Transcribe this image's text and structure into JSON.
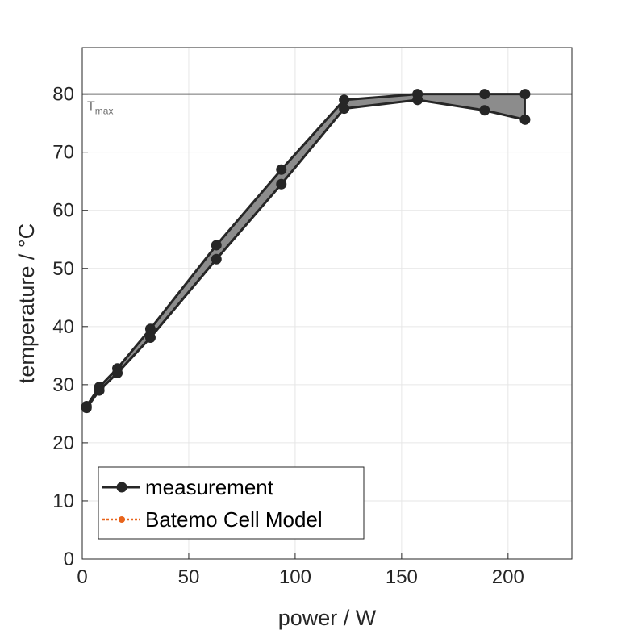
{
  "chart_data": {
    "type": "line",
    "xlabel": "power / W",
    "ylabel": "temperature / °C",
    "xlim": [
      0,
      230
    ],
    "ylim": [
      0,
      88
    ],
    "xticks": [
      0,
      50,
      100,
      150,
      200
    ],
    "yticks": [
      0,
      10,
      20,
      30,
      40,
      50,
      60,
      70,
      80
    ],
    "grid": true,
    "legend_position": "bottom-left",
    "series": [
      {
        "name": "measurement",
        "color": "#262626",
        "marker": "circle",
        "upper": [
          {
            "x": 2,
            "y": 26.3
          },
          {
            "x": 8,
            "y": 29.6
          },
          {
            "x": 16.5,
            "y": 32.8
          },
          {
            "x": 32,
            "y": 39.6
          },
          {
            "x": 63,
            "y": 54.0
          },
          {
            "x": 93.5,
            "y": 67.0
          },
          {
            "x": 123,
            "y": 79.0
          },
          {
            "x": 157.5,
            "y": 80.0
          },
          {
            "x": 189,
            "y": 80.0
          },
          {
            "x": 208,
            "y": 80.0
          }
        ],
        "lower": [
          {
            "x": 2,
            "y": 26.0
          },
          {
            "x": 8,
            "y": 29.0
          },
          {
            "x": 16.5,
            "y": 32.0
          },
          {
            "x": 32,
            "y": 38.1
          },
          {
            "x": 63,
            "y": 51.6
          },
          {
            "x": 93.5,
            "y": 64.5
          },
          {
            "x": 123,
            "y": 77.5
          },
          {
            "x": 157.5,
            "y": 79.0
          },
          {
            "x": 189,
            "y": 77.2
          },
          {
            "x": 208,
            "y": 75.6
          }
        ]
      },
      {
        "name": "Batemo Cell Model",
        "color": "#e8641b",
        "marker": "circle",
        "style": "dotted",
        "points": []
      }
    ],
    "reference_line": {
      "y": 80,
      "label": "T",
      "label_sub": "max",
      "color": "#707070"
    }
  }
}
